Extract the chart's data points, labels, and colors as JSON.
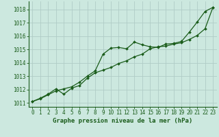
{
  "title": "Graphe pression niveau de la mer (hPa)",
  "background_color": "#cce8df",
  "grid_color": "#b0ccc6",
  "line_color": "#1a5c1a",
  "spine_color": "#1a5c1a",
  "xlim": [
    -0.5,
    23.5
  ],
  "ylim": [
    1010.7,
    1018.6
  ],
  "yticks": [
    1011,
    1012,
    1013,
    1014,
    1015,
    1016,
    1017,
    1018
  ],
  "xticks": [
    0,
    1,
    2,
    3,
    4,
    5,
    6,
    7,
    8,
    9,
    10,
    11,
    12,
    13,
    14,
    15,
    16,
    17,
    18,
    19,
    20,
    21,
    22,
    23
  ],
  "series1_x": [
    0,
    1,
    2,
    3,
    4,
    5,
    6,
    7,
    8,
    9,
    10,
    11,
    12,
    13,
    14,
    15,
    16,
    17,
    18,
    19,
    20,
    21,
    22,
    23
  ],
  "series1_y": [
    1011.1,
    1011.3,
    1011.6,
    1011.9,
    1012.05,
    1012.2,
    1012.55,
    1013.0,
    1013.4,
    1014.65,
    1015.1,
    1015.15,
    1015.05,
    1015.55,
    1015.35,
    1015.2,
    1015.15,
    1015.4,
    1015.45,
    1015.6,
    1016.3,
    1017.05,
    1017.85,
    1018.15
  ],
  "series2_x": [
    0,
    1,
    2,
    3,
    4,
    5,
    6,
    7,
    8,
    9,
    10,
    11,
    12,
    13,
    14,
    15,
    16,
    17,
    18,
    19,
    20,
    21,
    22,
    23
  ],
  "series2_y": [
    1011.1,
    1011.35,
    1011.65,
    1012.05,
    1011.65,
    1012.1,
    1012.3,
    1012.85,
    1013.25,
    1013.45,
    1013.65,
    1013.95,
    1014.15,
    1014.45,
    1014.65,
    1015.05,
    1015.2,
    1015.25,
    1015.4,
    1015.5,
    1015.75,
    1016.05,
    1016.55,
    1018.15
  ],
  "tick_labelsize": 5.5,
  "title_fontsize": 6.5,
  "linewidth": 0.9,
  "markersize": 2.0
}
